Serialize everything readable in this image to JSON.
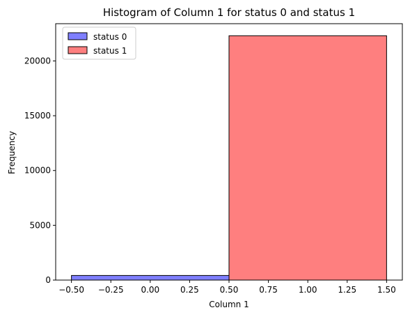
{
  "chart_data": {
    "type": "bar",
    "title": "Histogram of Column 1 for status 0 and status 1",
    "xlabel": "Column 1",
    "ylabel": "Frequency",
    "xlim": [
      -0.6,
      1.6
    ],
    "ylim": [
      0,
      23400
    ],
    "x_ticks": [
      -0.5,
      -0.25,
      0.0,
      0.25,
      0.5,
      0.75,
      1.0,
      1.25,
      1.5
    ],
    "x_tick_labels": [
      "−0.50",
      "−0.25",
      "0.00",
      "0.25",
      "0.50",
      "0.75",
      "1.00",
      "1.25",
      "1.50"
    ],
    "y_ticks": [
      0,
      5000,
      10000,
      15000,
      20000
    ],
    "y_tick_labels": [
      "0",
      "5000",
      "10000",
      "15000",
      "20000"
    ],
    "grid": false,
    "legend_position": "top-left",
    "series": [
      {
        "name": "status 0",
        "color": "#7f7ffe",
        "bins": [
          {
            "x0": -0.5,
            "x1": 0.5,
            "value": 420
          }
        ]
      },
      {
        "name": "status 1",
        "color": "#fe7f7f",
        "bins": [
          {
            "x0": 0.5,
            "x1": 1.5,
            "value": 22300
          }
        ]
      }
    ]
  }
}
